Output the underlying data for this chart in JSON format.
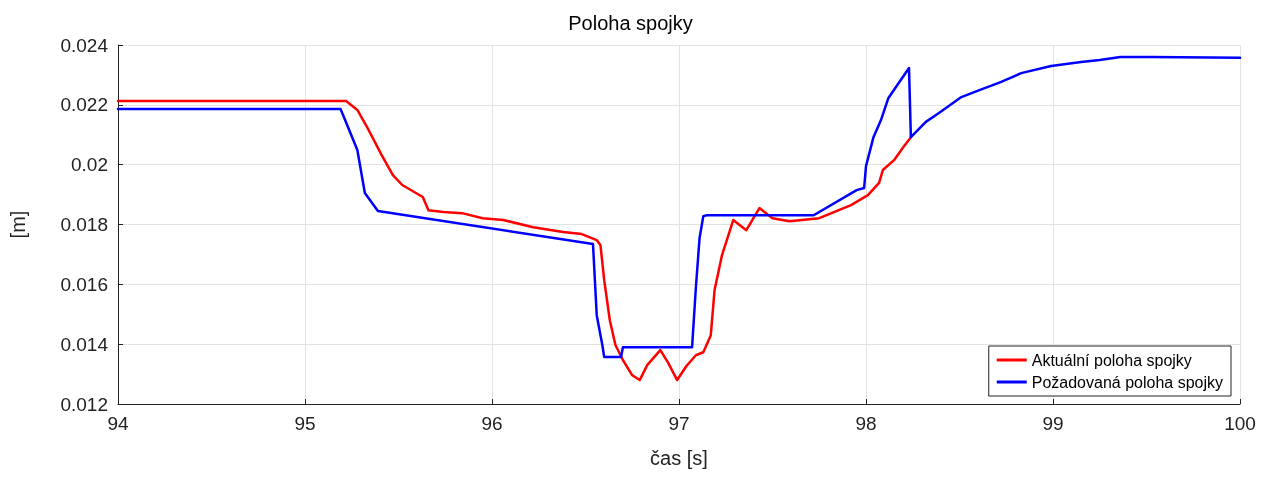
{
  "chart_data": {
    "type": "line",
    "title": "Poloha spojky",
    "xlabel": "čas [s]",
    "ylabel": "[m]",
    "xlim": [
      94,
      100
    ],
    "xticks": [
      94,
      95,
      96,
      97,
      98,
      99,
      100
    ],
    "ylim": [
      0.012,
      0.024
    ],
    "yticks": [
      0.012,
      0.014,
      0.016,
      0.018,
      0.02,
      0.022,
      0.024
    ],
    "grid": true,
    "legend": "bottom right",
    "marker": "none",
    "line_style": "solid",
    "series": [
      {
        "name": "Aktuální poloha spojky",
        "color": "#ff0000",
        "x": [
          94,
          95.22,
          95.28,
          95.34,
          95.41,
          95.47,
          95.52,
          95.63,
          95.66,
          95.74,
          95.84,
          95.95,
          96.06,
          96.22,
          96.38,
          96.48,
          96.56,
          96.58,
          96.6,
          96.63,
          96.66,
          96.7,
          96.75,
          96.79,
          96.83,
          96.9,
          96.94,
          96.99,
          97.04,
          97.09,
          97.13,
          97.17,
          97.19,
          97.23,
          97.29,
          97.36,
          97.43,
          97.5,
          97.59,
          97.75,
          97.92,
          98.01,
          98.07,
          98.09,
          98.15,
          98.2,
          98.24
        ],
        "values": [
          0.02213,
          0.02213,
          0.02183,
          0.02116,
          0.02032,
          0.01965,
          0.01932,
          0.01892,
          0.01848,
          0.01842,
          0.01838,
          0.01821,
          0.01815,
          0.01791,
          0.01775,
          0.01768,
          0.01748,
          0.01731,
          0.01614,
          0.0148,
          0.01397,
          0.01347,
          0.01296,
          0.0128,
          0.0133,
          0.0138,
          0.0134,
          0.0128,
          0.01327,
          0.01363,
          0.01373,
          0.0143,
          0.0158,
          0.01698,
          0.01815,
          0.01781,
          0.01855,
          0.01821,
          0.01811,
          0.01821,
          0.01865,
          0.01898,
          0.01939,
          0.01982,
          0.02015,
          0.02059,
          0.02092
        ]
      },
      {
        "name": "Požadovaná poloha spojky",
        "color": "#0000ff",
        "x": [
          94,
          95.19,
          95.21,
          95.28,
          95.32,
          95.39,
          96.54,
          96.56,
          96.59,
          96.6,
          96.69,
          96.7,
          97.07,
          97.09,
          97.11,
          97.13,
          97.15,
          97.72,
          97.95,
          97.99,
          98,
          98.04,
          98.08,
          98.12,
          98.23,
          98.24,
          98.32,
          98.39,
          98.51,
          98.61,
          98.72,
          98.83,
          98.99,
          99.15,
          99.25,
          99.36,
          99.52,
          100
        ],
        "values": [
          0.02186,
          0.02186,
          0.02156,
          0.02049,
          0.01905,
          0.01845,
          0.01735,
          0.01497,
          0.01397,
          0.01357,
          0.01357,
          0.0139,
          0.0139,
          0.01587,
          0.01755,
          0.01828,
          0.01831,
          0.01831,
          0.01915,
          0.01922,
          0.01995,
          0.02092,
          0.02149,
          0.02223,
          0.02323,
          0.02092,
          0.02143,
          0.02173,
          0.02226,
          0.0225,
          0.02276,
          0.02306,
          0.0233,
          0.02343,
          0.0235,
          0.0236,
          0.0236,
          0.02357
        ]
      }
    ]
  }
}
